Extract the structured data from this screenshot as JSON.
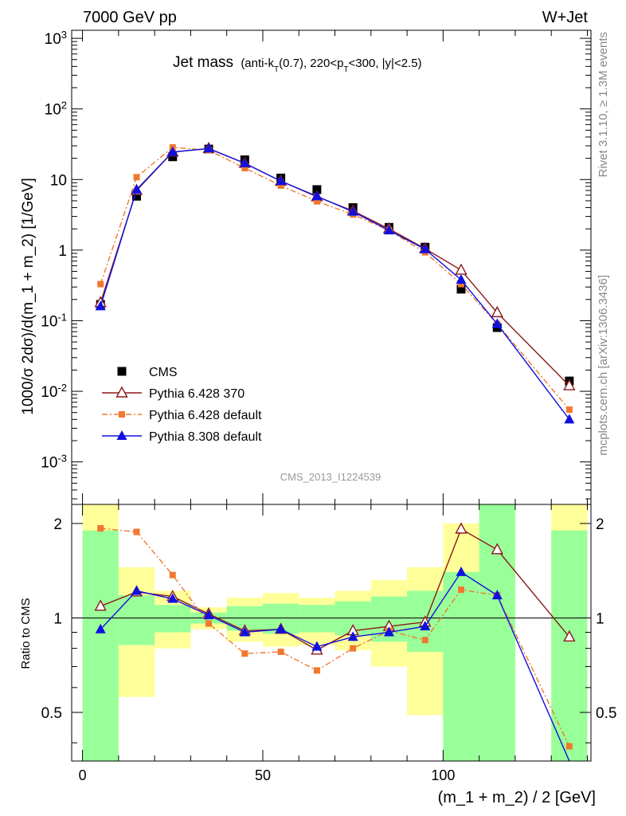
{
  "header": {
    "left": "7000 GeV pp",
    "right": "W+Jet"
  },
  "side_labels": {
    "rivet": "Rivet 3.1.10, ≥ 1.3M events",
    "mcplots": "mcplots.cern.ch [arXiv:1306.3436]"
  },
  "chart_data": {
    "type": "line",
    "title": "Jet mass",
    "title_detail": "(anti-k_T(0.7), 220<p_T<300, |y|<2.5)",
    "analysis_id": "CMS_2013_I1224539",
    "xlabel": "(m_1 + m_2) / 2 [GeV]",
    "ylabel": "1000/σ 2dσ)/d(m_1 + m_2) [1/GeV]",
    "ratio_ylabel": "Ratio to CMS",
    "xlim": [
      -3,
      141
    ],
    "ylim": [
      0.00025,
      1300
    ],
    "yscale": "log",
    "ratio_ylim": [
      0.35,
      2.3
    ],
    "x_ticks": [
      0,
      50,
      100
    ],
    "ratio_ticks": [
      0.5,
      1,
      2
    ],
    "y_tick_labels": [
      {
        "v": 0.001,
        "base": "10",
        "exp": "-3"
      },
      {
        "v": 0.01,
        "base": "10",
        "exp": "-2"
      },
      {
        "v": 0.1,
        "base": "10",
        "exp": "-1"
      },
      {
        "v": 1,
        "base": "1",
        "exp": ""
      },
      {
        "v": 10,
        "base": "10",
        "exp": ""
      },
      {
        "v": 100,
        "base": "10",
        "exp": "2"
      },
      {
        "v": 1000,
        "base": "10",
        "exp": "3"
      }
    ],
    "legend_position": "bottom-left",
    "x": [
      5,
      15,
      25,
      35,
      45,
      55,
      65,
      75,
      85,
      95,
      105,
      115,
      135
    ],
    "series": [
      {
        "name": "CMS",
        "color": "#000000",
        "marker": "square",
        "line": "none",
        "values": [
          0.17,
          5.8,
          21.0,
          27.0,
          19.0,
          10.5,
          7.2,
          4.0,
          2.1,
          1.1,
          0.28,
          0.08,
          0.014
        ]
      },
      {
        "name": "Pythia 6.428 370",
        "color": "#8b1a1a",
        "marker": "open-triangle",
        "line": "solid",
        "values": [
          0.18,
          7.0,
          24.5,
          27.5,
          17.0,
          9.5,
          5.7,
          3.6,
          2.0,
          1.05,
          0.52,
          0.13,
          0.012
        ]
      },
      {
        "name": "Pythia 6.428 default",
        "color": "#f07830",
        "marker": "square-small",
        "line": "dashdot",
        "values": [
          0.33,
          10.8,
          28.5,
          26.0,
          14.5,
          8.2,
          4.9,
          3.2,
          1.9,
          0.93,
          0.33,
          0.09,
          0.0055
        ]
      },
      {
        "name": "Pythia 8.308 default",
        "color": "#1010e0",
        "marker": "triangle",
        "line": "solid",
        "values": [
          0.16,
          7.2,
          24.5,
          27.5,
          17.0,
          9.5,
          5.8,
          3.5,
          1.9,
          1.03,
          0.38,
          0.09,
          0.004
        ]
      }
    ],
    "ratio_series": [
      {
        "name": "Pythia 6.428 370",
        "values": [
          1.09,
          1.21,
          1.17,
          1.03,
          0.91,
          0.92,
          0.79,
          0.91,
          0.94,
          0.97,
          1.92,
          1.65,
          0.87
        ]
      },
      {
        "name": "Pythia 6.428 default",
        "values": [
          1.93,
          1.88,
          1.37,
          0.96,
          0.77,
          0.78,
          0.68,
          0.8,
          0.91,
          0.85,
          1.23,
          1.18,
          0.39
        ]
      },
      {
        "name": "Pythia 8.308 default",
        "values": [
          0.92,
          1.22,
          1.15,
          1.02,
          0.9,
          0.92,
          0.81,
          0.87,
          0.9,
          0.94,
          1.4,
          1.18,
          0.3
        ]
      }
    ],
    "uncertainty_bands": [
      {
        "x0": 0,
        "x1": 10,
        "green_lo": 0.35,
        "green_hi": 1.9,
        "yellow_lo": 0.35,
        "yellow_hi": 2.3
      },
      {
        "x0": 10,
        "x1": 20,
        "green_lo": 0.82,
        "green_hi": 1.18,
        "yellow_lo": 0.56,
        "yellow_hi": 1.45
      },
      {
        "x0": 20,
        "x1": 30,
        "green_lo": 0.9,
        "green_hi": 1.1,
        "yellow_lo": 0.8,
        "yellow_hi": 1.22
      },
      {
        "x0": 30,
        "x1": 40,
        "green_lo": 0.96,
        "green_hi": 1.04,
        "yellow_lo": 0.92,
        "yellow_hi": 1.08
      },
      {
        "x0": 40,
        "x1": 50,
        "green_lo": 0.91,
        "green_hi": 1.09,
        "yellow_lo": 0.84,
        "yellow_hi": 1.16
      },
      {
        "x0": 50,
        "x1": 60,
        "green_lo": 0.89,
        "green_hi": 1.11,
        "yellow_lo": 0.81,
        "yellow_hi": 1.2
      },
      {
        "x0": 60,
        "x1": 70,
        "green_lo": 0.9,
        "green_hi": 1.1,
        "yellow_lo": 0.82,
        "yellow_hi": 1.16
      },
      {
        "x0": 70,
        "x1": 80,
        "green_lo": 0.88,
        "green_hi": 1.13,
        "yellow_lo": 0.79,
        "yellow_hi": 1.22
      },
      {
        "x0": 80,
        "x1": 90,
        "green_lo": 0.84,
        "green_hi": 1.17,
        "yellow_lo": 0.7,
        "yellow_hi": 1.32
      },
      {
        "x0": 90,
        "x1": 100,
        "green_lo": 0.78,
        "green_hi": 1.22,
        "yellow_lo": 0.49,
        "yellow_hi": 1.45
      },
      {
        "x0": 100,
        "x1": 110,
        "green_lo": 0.35,
        "green_hi": 1.4,
        "yellow_lo": 0.35,
        "yellow_hi": 2.0
      },
      {
        "x0": 110,
        "x1": 120,
        "green_lo": 0.35,
        "green_hi": 2.3,
        "yellow_lo": 0.35,
        "yellow_hi": 2.3
      },
      {
        "x0": 130,
        "x1": 140,
        "green_lo": 0.35,
        "green_hi": 1.9,
        "yellow_lo": 0.35,
        "yellow_hi": 2.3
      }
    ]
  }
}
